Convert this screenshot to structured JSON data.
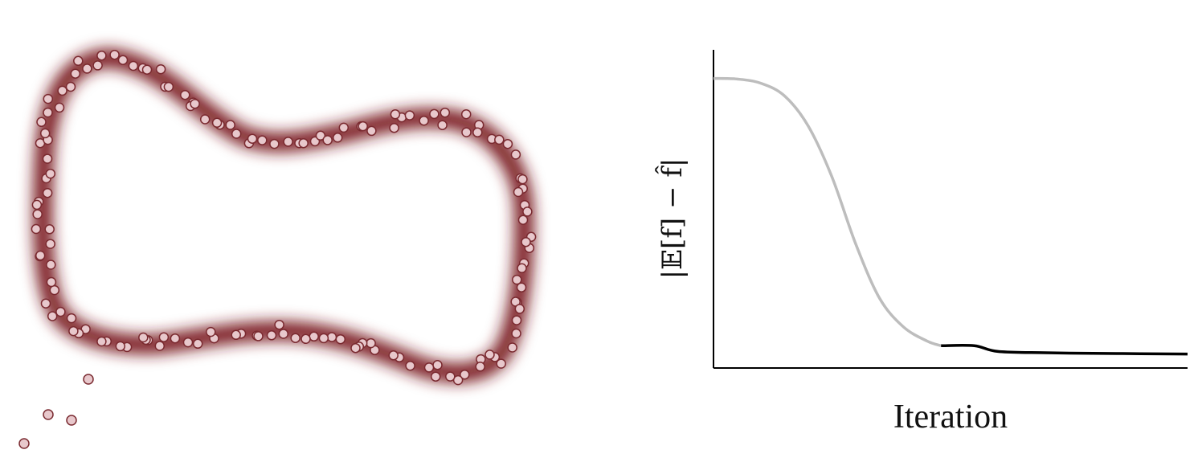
{
  "colors": {
    "ring": "#7a1f24",
    "point_fill": "#e8c8cc",
    "point_stroke": "#7a2a30",
    "curve_early": "#bdbdbd",
    "curve_late": "#000000",
    "axis": "#000000"
  },
  "chart_data": [
    {
      "type": "scatter",
      "title": "",
      "xlabel": "",
      "ylabel": "",
      "grid": false,
      "legend": "none",
      "description_of_marks": "samples scattered on a closed ring-shaped density, plus a few outlier samples at lower left",
      "ring_samples": 150,
      "outliers": [
        [
          110,
          472
        ],
        [
          60,
          516
        ],
        [
          89,
          523
        ],
        [
          30,
          552
        ]
      ]
    },
    {
      "type": "line",
      "title": "",
      "xlabel": "Iteration",
      "ylabel": "|𝔼[f] − f̂|",
      "grid": false,
      "legend": "none",
      "x_ticks": [],
      "y_ticks": [],
      "xlim": [
        0,
        100
      ],
      "ylim": [
        0,
        100
      ],
      "series": [
        {
          "style": "light-gray",
          "x": [
            0,
            5,
            10,
            15,
            20,
            25,
            30,
            35,
            40,
            45,
            48
          ],
          "y": [
            91,
            90.8,
            89.5,
            85.5,
            76,
            60,
            39,
            22,
            13,
            8.5,
            7
          ]
        },
        {
          "style": "black",
          "x": [
            48,
            55,
            60,
            70,
            80,
            90,
            100
          ],
          "y": [
            7,
            7,
            5.2,
            4.8,
            4.6,
            4.5,
            4.4
          ]
        }
      ]
    }
  ]
}
